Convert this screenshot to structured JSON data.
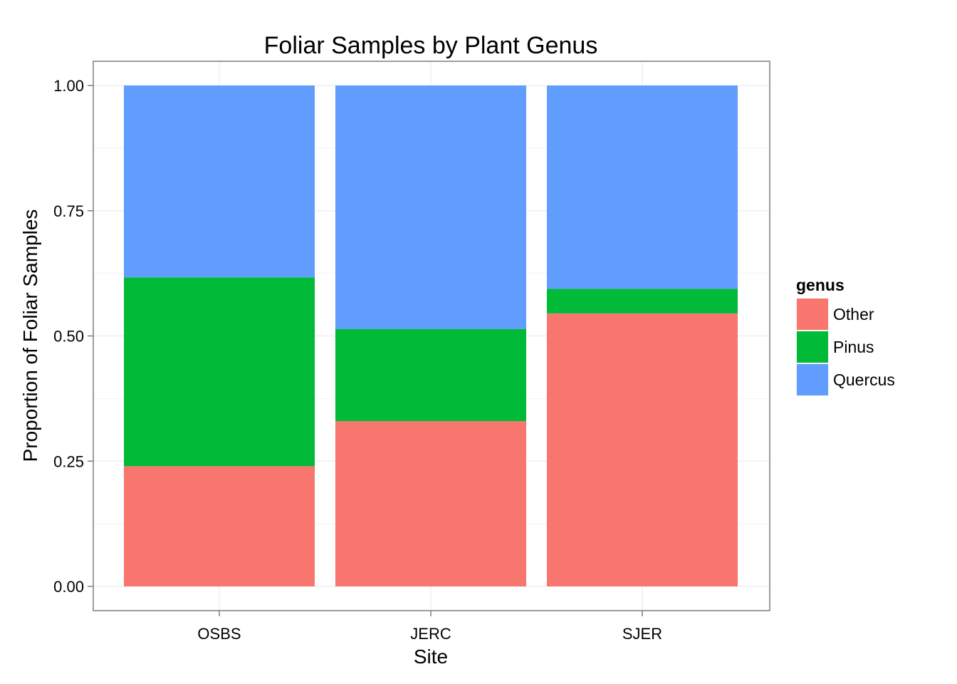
{
  "chart_data": {
    "type": "bar",
    "stacked": true,
    "title": "Foliar Samples by Plant Genus",
    "xlabel": "Site",
    "ylabel": "Proportion of Foliar Samples",
    "ylim": [
      0,
      1
    ],
    "y_ticks": [
      "0.00",
      "0.25",
      "0.50",
      "0.75",
      "1.00"
    ],
    "y_tick_values": [
      0,
      0.25,
      0.5,
      0.75,
      1.0
    ],
    "categories": [
      "OSBS",
      "JERC",
      "SJER"
    ],
    "grid": true,
    "legend_position": "right",
    "legend_title": "genus",
    "series": [
      {
        "name": "Other",
        "color": "#F8766D",
        "values": [
          0.24,
          0.33,
          0.545
        ]
      },
      {
        "name": "Pinus",
        "color": "#00BA38",
        "values": [
          0.377,
          0.184,
          0.049
        ]
      },
      {
        "name": "Quercus",
        "color": "#619CFF",
        "values": [
          0.383,
          0.486,
          0.406
        ]
      }
    ]
  }
}
